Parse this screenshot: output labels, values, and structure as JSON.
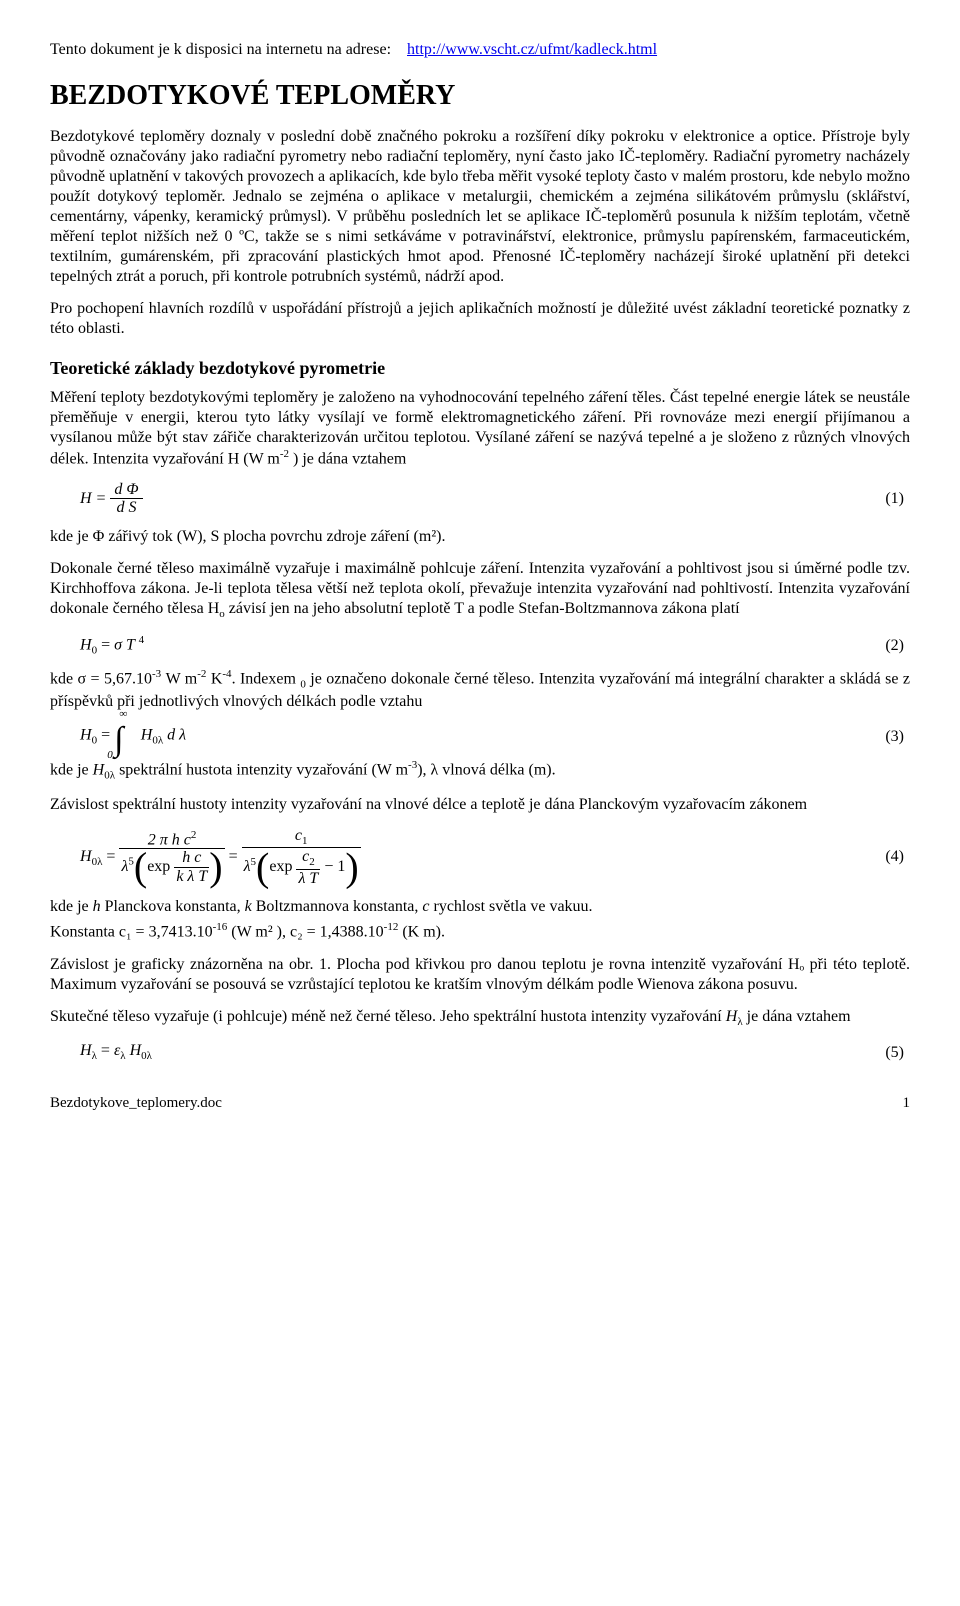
{
  "header": {
    "availability": "Tento dokument je k disposici na internetu na adrese:",
    "url": "http://www.vscht.cz/ufmt/kadleck.html"
  },
  "title": "BEZDOTYKOVÉ TEPLOMĚRY",
  "para1": "Bezdotykové teploměry doznaly v poslední době značného pokroku a rozšíření díky pokroku v elektronice a optice. Přístroje byly původně označovány jako radiační pyrometry nebo radiační teploměry, nyní často jako IČ-teploměry. Radiační pyrometry nacházely původně uplatnění v takových provozech a aplikacích, kde bylo třeba měřit vysoké teploty často v malém prostoru, kde nebylo možno použít dotykový teploměr. Jednalo se zejména o aplikace v metalurgii, chemickém a zejména silikátovém průmyslu (sklářství, cementárny, vápenky, keramický průmysl). V průběhu posledních let se aplikace IČ-teploměrů posunula k nižším teplotám, včetně měření teplot nižších než 0 ºC, takže se s nimi setkáváme v potravinářství, elektronice, průmyslu papírenském, farmaceutickém, textilním, gumárenském, při zpracování plastických hmot apod. Přenosné IČ-teploměry nacházejí široké uplatnění při detekci tepelných ztrát a poruch,  při kontrole potrubních systémů, nádrží apod.",
  "para2": "Pro pochopení hlavních rozdílů v uspořádání přístrojů a jejich aplikačních možností je důležité uvést základní teoretické poznatky z této oblasti.",
  "section_title": "Teoretické základy bezdotykové pyrometrie",
  "para3_a": "Měření teploty bezdotykovými teploměry je založeno na vyhodnocování tepelného záření těles. Část tepelné energie látek se neustále přeměňuje v energii, kterou tyto látky vysílají ve formě elektromagnetického záření. Při rovnováze mezi energií přijímanou a vysílanou může být stav zářiče charakterizován určitou teplotou. Vysílané záření se nazývá tepelné a je složeno z různých vlnových délek.  Intenzita vyzařování  H  (W m",
  "para3_b": " )  je dána vztahem",
  "eq1_num": "d Φ",
  "eq1_den": "d S",
  "eq1_lhs": "H =",
  "eq1_label": "(1)",
  "para4": "kde je  Φ  zářivý tok  (W),  S  plocha povrchu zdroje záření  (m²).",
  "para5_a": "Dokonale černé těleso maximálně vyzařuje i maximálně pohlcuje záření. Intenzita vyzařování a pohltivost jsou si úměrné podle tzv. Kirchhoffova zákona. Je-li teplota tělesa větší než teplota okolí, převažuje intenzita vyzařování nad pohltivostí. Intenzita vyzařování dokonale černého tělesa  H",
  "para5_b": "  závisí jen na jeho absolutní teplotě  T  a podle Stefan-Boltzmannova zákona platí",
  "eq2": "H₀ = σ T",
  "eq2_label": "(2)",
  "para6_a": "kde  σ = 5,67.10",
  "para6_b": " W m",
  "para6_c": " K",
  "para6_d": ". Indexem  ",
  "para6_e": "  je označeno dokonale černé těleso. Intenzita vyzařování má integrální charakter a skládá se z příspěvků při jednotlivých vlnových délkách podle vztahu",
  "eq3_lhs": "H₀ =",
  "eq3_integrand": "H",
  "eq3_d": "  d λ",
  "eq3_label": "(3)",
  "para7_a": "kde je  ",
  "para7_b": "  spektrální hustota intenzity vyzařování (W m",
  "para7_c": "),  λ  vlnová délka (m).",
  "para8": "Závislost spektrální hustoty intenzity vyzařování na vlnové délce a teplotě je dána Planckovým vyzařovacím zákonem",
  "eq4_label": "(4)",
  "para9_a": "kde je  ",
  "para9_b": "  Planckova konstanta,  ",
  "para9_c": "  Boltzmannova konstanta,  ",
  "para9_d": "  rychlost světla ve vakuu.",
  "para10_a": "Konstanta  c₁ = 3,7413.10",
  "para10_b": " (W m² ),   c₂  = 1,4388.10",
  "para10_c": " (K m).",
  "para11": "Závislost je graficky znázorněna na obr. 1. Plocha pod křivkou pro danou teplotu je rovna intenzitě vyzařování  Hₒ  při této teplotě. Maximum vyzařování se posouvá se vzrůstající teplotou ke kratším vlnovým délkám podle Wienova zákona posuvu.",
  "para12_a": "Skutečné těleso vyzařuje (i pohlcuje) méně než černé těleso. Jeho spektrální hustota intenzity vyzařování  ",
  "para12_b": "  je dána vztahem",
  "eq5": "Hλ = ελ  H",
  "eq5_label": "(5)",
  "footer_file": "Bezdotykove_teplomery.doc",
  "footer_page": "1"
}
